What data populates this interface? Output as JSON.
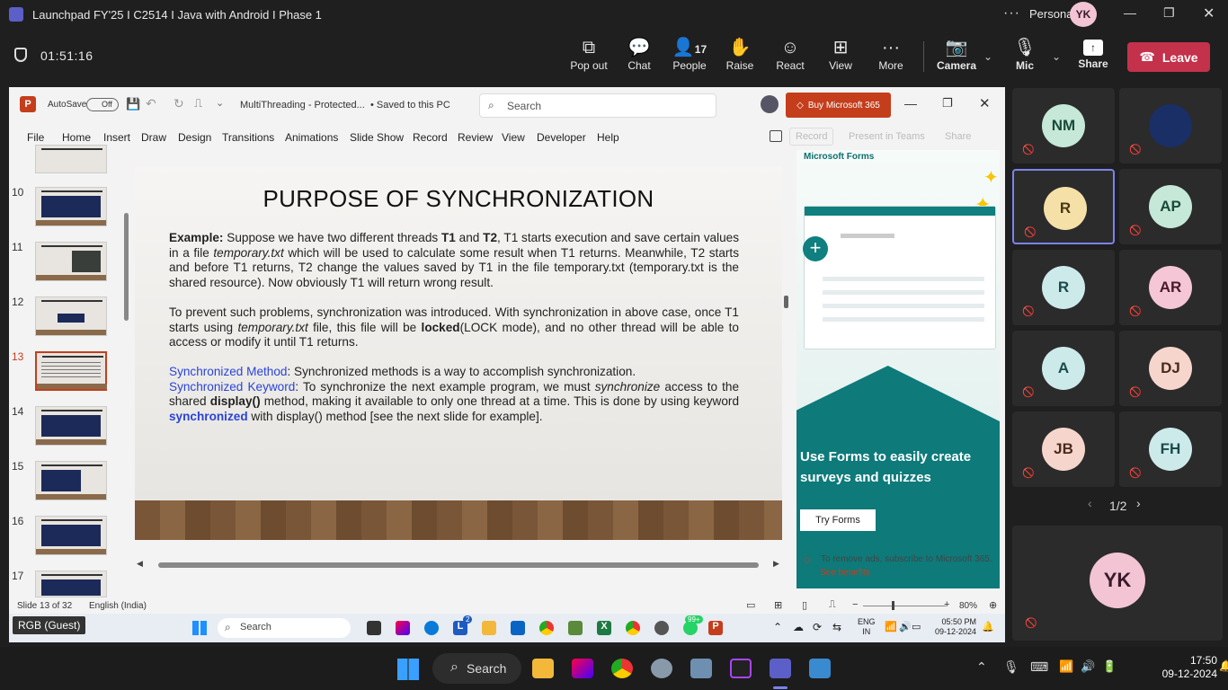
{
  "teams": {
    "window_title": "Launchpad FY'25 I C2514 I Java with Android I Phase 1",
    "profile": "Personal",
    "profile_initials": "YK",
    "timer": "01:51:16",
    "buttons": {
      "popout": "Pop out",
      "chat": "Chat",
      "people": "People",
      "people_count": "17",
      "raise": "Raise",
      "react": "React",
      "view": "View",
      "more": "More",
      "camera": "Camera",
      "mic": "Mic",
      "share": "Share",
      "leave": "Leave"
    }
  },
  "ppt": {
    "autosave_label": "AutoSave",
    "autosave_state": "Off",
    "filename": "MultiThreading  -  Protected...",
    "saved": "• Saved to this PC",
    "search_placeholder": "Search",
    "buy": "Buy Microsoft 365",
    "menu": [
      "File",
      "Home",
      "Insert",
      "Draw",
      "Design",
      "Transitions",
      "Animations",
      "Slide Show",
      "Record",
      "Review",
      "View",
      "Developer",
      "Help"
    ],
    "record_btn": "Record",
    "present_teams": "Present in Teams",
    "share_btn": "Share",
    "thumb_numbers": [
      "10",
      "11",
      "12",
      "13",
      "14",
      "15",
      "16",
      "17"
    ],
    "slide": {
      "title": "PURPOSE OF SYNCHRONIZATION",
      "p1": {
        "label": "Example:",
        "a": " Suppose we have two different threads ",
        "t1": "T1",
        "and": " and ",
        "t2": "T2",
        "b": ", T1 starts execution and save certain values in a file ",
        "file1": "temporary.txt",
        "c": " which will be used to calculate some result when T1 returns. Meanwhile, T2 starts and before T1 returns, T2 change the values saved by T1 in the file temporary.txt (temporary.txt is the shared resource). Now obviously T1 will return wrong result."
      },
      "p2": {
        "a": "To prevent such problems, synchronization was introduced. With synchronization in above case, once T1 starts using ",
        "file": "temporary.txt",
        "b": " file, this file will be ",
        "locked": "locked",
        "c": "(LOCK mode), and no other thread will be able to access or modify it until T1 returns."
      },
      "p3": {
        "m_label": "Synchronized Method",
        "m_text": ": Synchronized methods is a way to accomplish synchronization.",
        "k_label": "Synchronized Keyword",
        "k_a": ": To synchronize the next example program, we must ",
        "k_sync": "synchronize",
        "k_b": " access to the shared ",
        "k_display": "display()",
        "k_c": " method, making it available to only one thread at a time. This is done by using keyword ",
        "k_kw": "synchronized",
        "k_d": " with display() method [see the next slide for example]."
      }
    },
    "ad": {
      "brand": "Microsoft Forms",
      "headline": "Use Forms to easily create surveys and quizzes",
      "cta": "Try Forms",
      "footer": "To remove ads, subscribe to Microsoft 365.",
      "benefits": "See benefits"
    },
    "status": {
      "slide": "Slide 13 of 32",
      "language": "English (India)",
      "zoom": "80%"
    }
  },
  "remote_taskbar": {
    "search": "Search",
    "badge_l": "2",
    "badge_wa": "99+",
    "lang1": "ENG",
    "lang2": "IN",
    "time": "05:50 PM",
    "date": "09-12-2024"
  },
  "participants": [
    {
      "initials": "NM",
      "color": "#c5e8d8",
      "fg": "#1a4a3a"
    },
    {
      "initials": "",
      "color": "#1a2f66",
      "fg": "#fff"
    },
    {
      "initials": "R",
      "color": "#f5e0a8",
      "fg": "#4a3a10"
    },
    {
      "initials": "AP",
      "color": "#c5e8d8",
      "fg": "#1a4a3a"
    },
    {
      "initials": "R",
      "color": "#cdeaea",
      "fg": "#1a4a4a"
    },
    {
      "initials": "AR",
      "color": "#f4c6d6",
      "fg": "#4a1a2a"
    },
    {
      "initials": "A",
      "color": "#cdeaea",
      "fg": "#1a4a4a"
    },
    {
      "initials": "DJ",
      "color": "#f6d6cc",
      "fg": "#4a2a1a"
    },
    {
      "initials": "JB",
      "color": "#f6d6cc",
      "fg": "#4a2a1a"
    },
    {
      "initials": "FH",
      "color": "#cdeaea",
      "fg": "#1a4a4a"
    }
  ],
  "pager": "1/2",
  "self_initials": "YK",
  "guest_label": "RGB (Guest)",
  "taskbar": {
    "search": "Search",
    "time": "17:50",
    "date": "09-12-2024"
  }
}
